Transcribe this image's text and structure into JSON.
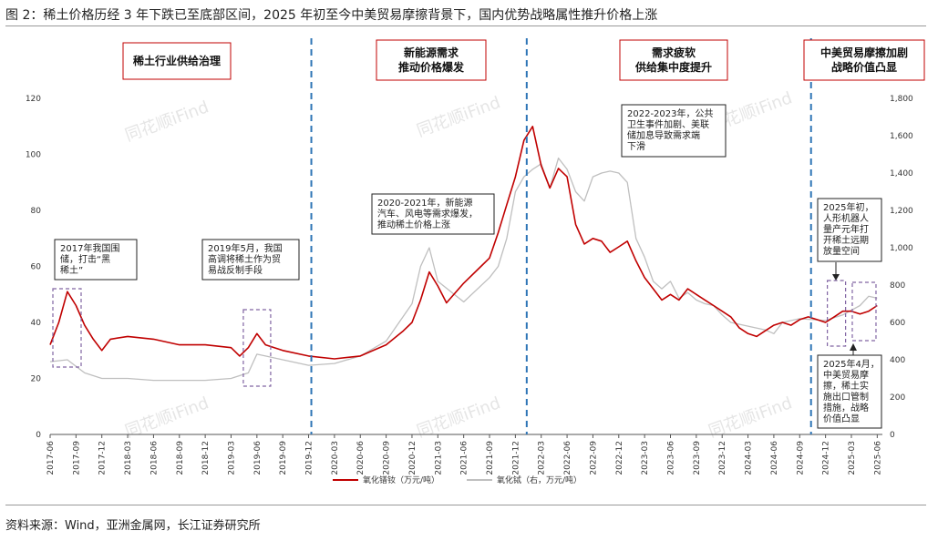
{
  "figure": {
    "title": "图 2：稀土价格历经 3 年下跌已至底部区间，2025 年初至今中美贸易摩擦背景下，国内优势战略属性推升价格上涨",
    "source": "资料来源：Wind，亚洲金属网，长江证券研究所",
    "watermark": "同花顺iFind"
  },
  "colors": {
    "series_left": "#c00000",
    "series_right": "#bfbfbf",
    "divider": "#2e75b6",
    "highlight_box": "#8064a2",
    "phase_border": "#c00000"
  },
  "phases": [
    {
      "lines": [
        "稀土行业供给治理"
      ]
    },
    {
      "lines": [
        "新能源需求",
        "推动价格爆发"
      ]
    },
    {
      "lines": [
        "需求疲软",
        "供给集中度提升"
      ]
    },
    {
      "lines": [
        "中美贸易摩擦加剧",
        "战略价值凸显"
      ]
    }
  ],
  "annotations": [
    {
      "lines": [
        "2017年我国围",
        "储，打击“黑",
        "稀土”"
      ]
    },
    {
      "lines": [
        "2019年5月，我国",
        "高调将稀土作为贸",
        "易战反制手段"
      ]
    },
    {
      "lines": [
        "2020-2021年，新能源",
        "汽车、风电等需求爆发，",
        "推动稀土价格上涨"
      ]
    },
    {
      "lines": [
        "2022-2023年，公共",
        "卫生事件加剧、美联",
        "储加息导致需求端",
        "下滑"
      ]
    },
    {
      "lines": [
        "2025年初，",
        "人形机器人",
        "量产元年打",
        "开稀土远期",
        "放量空间"
      ]
    },
    {
      "lines": [
        "2025年4月，",
        "中美贸易摩",
        "擦，稀土实",
        "施出口管制",
        "措施，战略",
        "价值凸显"
      ]
    }
  ],
  "chart_data": {
    "type": "line",
    "x_ticks": [
      "2017-06",
      "2017-09",
      "2017-12",
      "2018-03",
      "2018-06",
      "2018-09",
      "2018-12",
      "2019-03",
      "2019-06",
      "2019-09",
      "2019-12",
      "2020-03",
      "2020-06",
      "2020-09",
      "2020-12",
      "2021-03",
      "2021-06",
      "2021-09",
      "2021-12",
      "2022-03",
      "2022-06",
      "2022-09",
      "2022-12",
      "2023-03",
      "2023-06",
      "2023-09",
      "2023-12",
      "2024-03",
      "2024-06",
      "2024-09",
      "2024-12",
      "2025-03",
      "2025-06"
    ],
    "y_left": {
      "ticks": [
        "0",
        "20",
        "40",
        "60",
        "80",
        "100",
        "120"
      ],
      "ylim": [
        0,
        120
      ]
    },
    "y_right": {
      "ticks": [
        "0",
        "200",
        "400",
        "600",
        "800",
        "1,000",
        "1,200",
        "1,400",
        "1,600",
        "1,800"
      ],
      "ylim": [
        0,
        1800
      ]
    },
    "dividers": [
      "2019-12",
      "2022-01",
      "2024-10"
    ],
    "series": [
      {
        "name": "氧化镨钕（万元/吨）",
        "axis": "left",
        "points": [
          [
            "2017-06",
            32
          ],
          [
            "2017-07",
            40
          ],
          [
            "2017-08",
            51
          ],
          [
            "2017-09",
            46
          ],
          [
            "2017-10",
            39
          ],
          [
            "2017-11",
            34
          ],
          [
            "2017-12",
            30
          ],
          [
            "2018-01",
            34
          ],
          [
            "2018-03",
            35
          ],
          [
            "2018-06",
            34
          ],
          [
            "2018-09",
            32
          ],
          [
            "2018-12",
            32
          ],
          [
            "2019-03",
            31
          ],
          [
            "2019-04",
            28
          ],
          [
            "2019-05",
            31
          ],
          [
            "2019-06",
            36
          ],
          [
            "2019-07",
            32
          ],
          [
            "2019-09",
            30
          ],
          [
            "2019-12",
            28
          ],
          [
            "2020-03",
            27
          ],
          [
            "2020-06",
            28
          ],
          [
            "2020-09",
            32
          ],
          [
            "2020-11",
            37
          ],
          [
            "2020-12",
            40
          ],
          [
            "2021-01",
            48
          ],
          [
            "2021-02",
            58
          ],
          [
            "2021-03",
            53
          ],
          [
            "2021-04",
            47
          ],
          [
            "2021-06",
            54
          ],
          [
            "2021-08",
            60
          ],
          [
            "2021-09",
            63
          ],
          [
            "2021-10",
            72
          ],
          [
            "2021-11",
            82
          ],
          [
            "2021-12",
            92
          ],
          [
            "2022-01",
            105
          ],
          [
            "2022-02",
            110
          ],
          [
            "2022-03",
            96
          ],
          [
            "2022-04",
            88
          ],
          [
            "2022-05",
            95
          ],
          [
            "2022-06",
            92
          ],
          [
            "2022-07",
            75
          ],
          [
            "2022-08",
            68
          ],
          [
            "2022-09",
            70
          ],
          [
            "2022-10",
            69
          ],
          [
            "2022-11",
            65
          ],
          [
            "2022-12",
            67
          ],
          [
            "2023-01",
            69
          ],
          [
            "2023-02",
            62
          ],
          [
            "2023-03",
            56
          ],
          [
            "2023-04",
            52
          ],
          [
            "2023-05",
            48
          ],
          [
            "2023-06",
            50
          ],
          [
            "2023-07",
            48
          ],
          [
            "2023-08",
            52
          ],
          [
            "2023-09",
            50
          ],
          [
            "2023-10",
            48
          ],
          [
            "2023-11",
            46
          ],
          [
            "2023-12",
            44
          ],
          [
            "2024-01",
            42
          ],
          [
            "2024-02",
            38
          ],
          [
            "2024-03",
            36
          ],
          [
            "2024-04",
            35
          ],
          [
            "2024-05",
            37
          ],
          [
            "2024-06",
            39
          ],
          [
            "2024-07",
            40
          ],
          [
            "2024-08",
            39
          ],
          [
            "2024-09",
            41
          ],
          [
            "2024-10",
            42
          ],
          [
            "2024-11",
            41
          ],
          [
            "2024-12",
            40
          ],
          [
            "2025-01",
            42
          ],
          [
            "2025-02",
            44
          ],
          [
            "2025-03",
            44
          ],
          [
            "2025-04",
            43
          ],
          [
            "2025-05",
            44
          ],
          [
            "2025-06",
            46
          ]
        ]
      },
      {
        "name": "氧化铽（右，万元/吨）",
        "axis": "right",
        "points": [
          [
            "2017-06",
            390
          ],
          [
            "2017-08",
            400
          ],
          [
            "2017-10",
            330
          ],
          [
            "2017-12",
            300
          ],
          [
            "2018-03",
            300
          ],
          [
            "2018-06",
            290
          ],
          [
            "2018-09",
            290
          ],
          [
            "2018-12",
            290
          ],
          [
            "2019-03",
            300
          ],
          [
            "2019-05",
            330
          ],
          [
            "2019-06",
            430
          ],
          [
            "2019-07",
            420
          ],
          [
            "2019-09",
            400
          ],
          [
            "2019-12",
            370
          ],
          [
            "2020-03",
            380
          ],
          [
            "2020-06",
            420
          ],
          [
            "2020-09",
            500
          ],
          [
            "2020-12",
            700
          ],
          [
            "2021-01",
            900
          ],
          [
            "2021-02",
            1000
          ],
          [
            "2021-03",
            820
          ],
          [
            "2021-06",
            710
          ],
          [
            "2021-09",
            840
          ],
          [
            "2021-10",
            900
          ],
          [
            "2021-11",
            1050
          ],
          [
            "2021-12",
            1300
          ],
          [
            "2022-01",
            1380
          ],
          [
            "2022-02",
            1420
          ],
          [
            "2022-03",
            1450
          ],
          [
            "2022-04",
            1320
          ],
          [
            "2022-05",
            1480
          ],
          [
            "2022-06",
            1420
          ],
          [
            "2022-07",
            1300
          ],
          [
            "2022-08",
            1250
          ],
          [
            "2022-09",
            1380
          ],
          [
            "2022-10",
            1400
          ],
          [
            "2022-11",
            1410
          ],
          [
            "2022-12",
            1400
          ],
          [
            "2023-01",
            1350
          ],
          [
            "2023-02",
            1050
          ],
          [
            "2023-03",
            950
          ],
          [
            "2023-04",
            820
          ],
          [
            "2023-05",
            780
          ],
          [
            "2023-06",
            820
          ],
          [
            "2023-07",
            730
          ],
          [
            "2023-08",
            760
          ],
          [
            "2023-09",
            720
          ],
          [
            "2023-10",
            700
          ],
          [
            "2023-11",
            690
          ],
          [
            "2023-12",
            640
          ],
          [
            "2024-01",
            600
          ],
          [
            "2024-03",
            580
          ],
          [
            "2024-05",
            560
          ],
          [
            "2024-06",
            540
          ],
          [
            "2024-07",
            600
          ],
          [
            "2024-09",
            620
          ],
          [
            "2024-12",
            610
          ],
          [
            "2025-02",
            640
          ],
          [
            "2025-04",
            690
          ],
          [
            "2025-05",
            740
          ],
          [
            "2025-06",
            730
          ]
        ]
      }
    ]
  }
}
